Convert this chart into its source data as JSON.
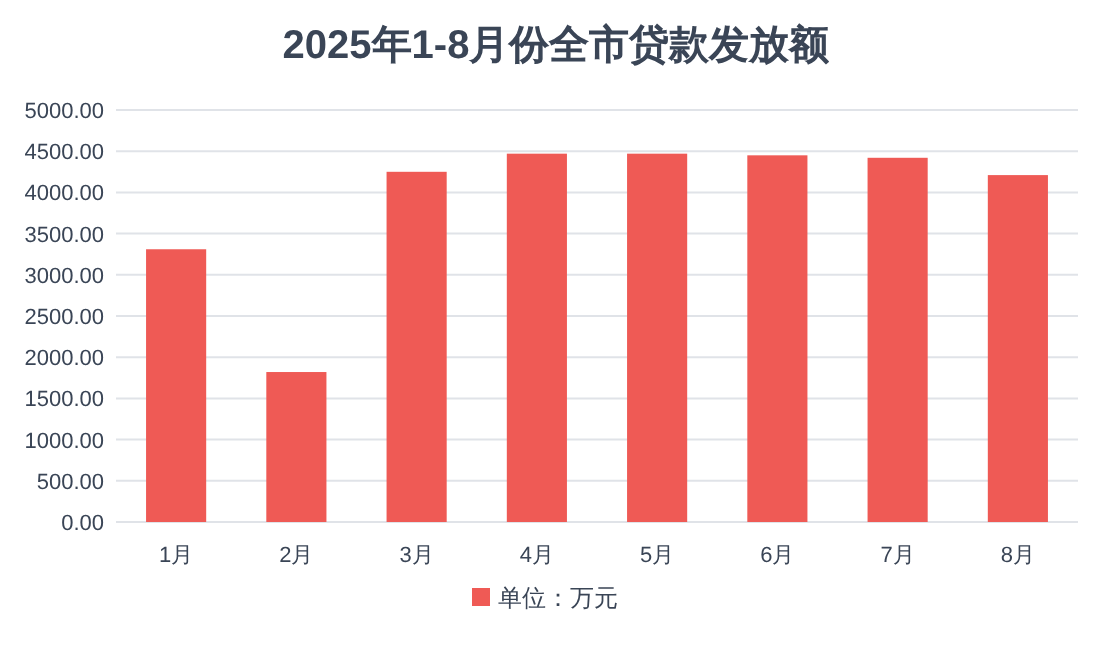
{
  "chart_data": {
    "type": "bar",
    "title": "2025年1-8月份全市贷款发放额",
    "categories": [
      "1月",
      "2月",
      "3月",
      "4月",
      "5月",
      "6月",
      "7月",
      "8月"
    ],
    "series": [
      {
        "name": "单位：万元",
        "color": "#ef5a55",
        "values": [
          3310,
          1820,
          4250,
          4470,
          4470,
          4450,
          4420,
          4210
        ]
      }
    ],
    "ylim": [
      0,
      5000
    ],
    "yticks": [
      {
        "value": 0,
        "label": "0.00"
      },
      {
        "value": 500,
        "label": "500.00"
      },
      {
        "value": 1000,
        "label": "1000.00"
      },
      {
        "value": 1500,
        "label": "1500.00"
      },
      {
        "value": 2000,
        "label": "2000.00"
      },
      {
        "value": 2500,
        "label": "2500.00"
      },
      {
        "value": 3000,
        "label": "3000.00"
      },
      {
        "value": 3500,
        "label": "3500.00"
      },
      {
        "value": 4000,
        "label": "4000.00"
      },
      {
        "value": 4500,
        "label": "4500.00"
      },
      {
        "value": 5000,
        "label": "5000.00"
      }
    ],
    "grid": "y",
    "legend": "bottom"
  }
}
